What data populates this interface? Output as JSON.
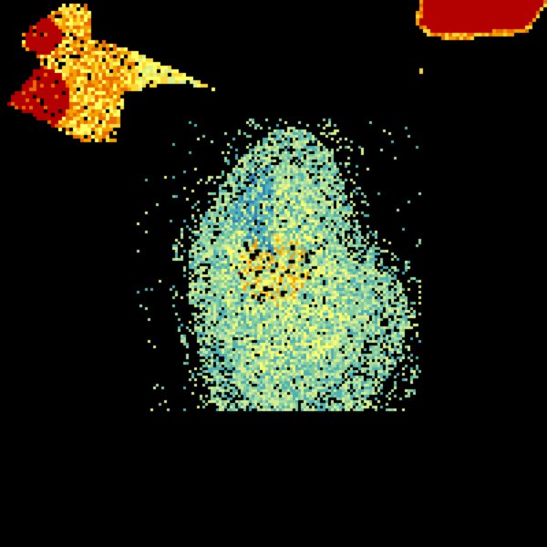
{
  "radar": {
    "background": "#000000",
    "palette": [
      "#2b83ba",
      "#4fb0b5",
      "#80cc9f",
      "#abdda4",
      "#d9ef8b",
      "#ffff66",
      "#fdd835",
      "#f4a100",
      "#e86a00",
      "#b30000"
    ],
    "echoes": [
      {
        "name": "central-echo",
        "intensity": "low-moderate"
      },
      {
        "name": "northwest-cell",
        "intensity": "high"
      },
      {
        "name": "northeast-cell",
        "intensity": "high"
      }
    ]
  }
}
